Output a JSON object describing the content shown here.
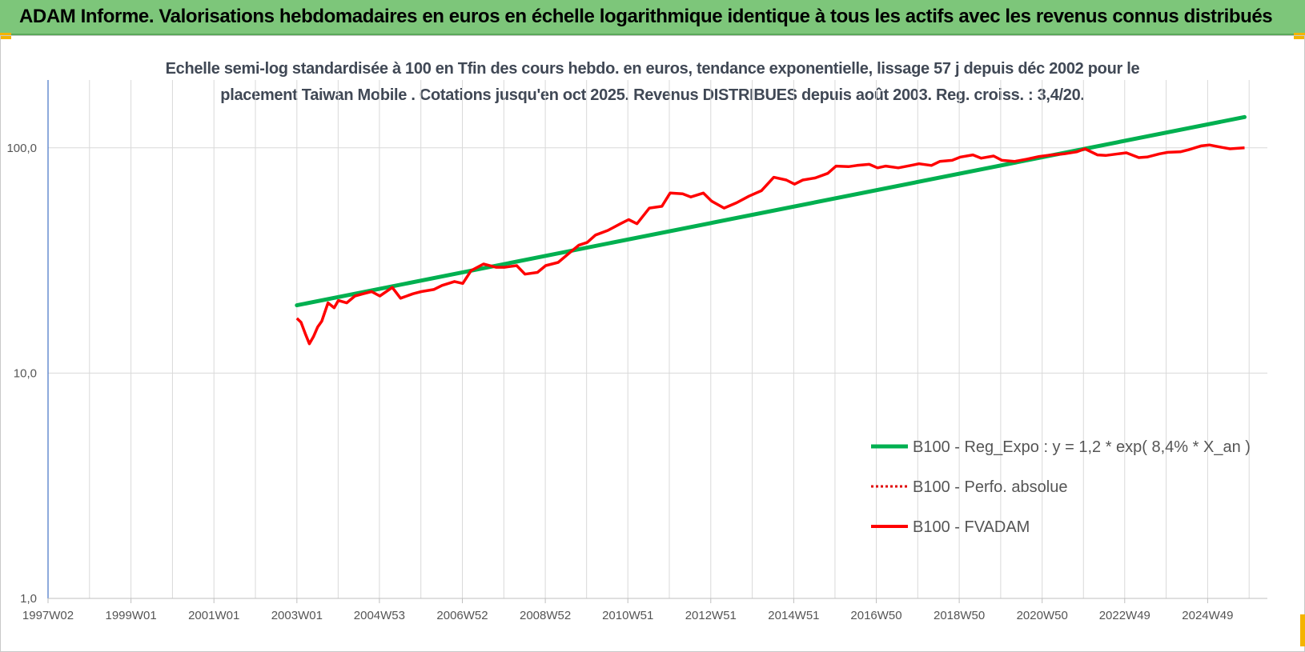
{
  "header": {
    "title": "ADAM Informe. Valorisations hebdomadaires en euros en échelle logarithmique identique à tous les actifs avec les revenus connus distribués"
  },
  "colors": {
    "header_bg": "#7dc67a",
    "regression": "#00b050",
    "perf": "#e00000",
    "fvadam": "#ff0000",
    "grid": "#d9d9d9"
  },
  "chart_data": {
    "type": "line",
    "title": "Echelle semi-log standardisée à 100 en Tfin des cours hebdo. en euros, tendance exponentielle, lissage 57 j depuis déc 2002 pour le placement Taiwan Mobile . Cotations jusqu'en oct 2025. Revenus DISTRIBUES depuis août 2003. Reg. croiss. : 3,4/20.",
    "subtitle_lines": [
      "Echelle semi-log standardisée à 100 en Tfin des cours hebdo. en euros, tendance exponentielle, lissage 57 j depuis déc 2002 pour le",
      "placement Taiwan Mobile . Cotations jusqu'en oct 2025. Revenus DISTRIBUES depuis août 2003. Reg. croiss. : 3,4/20."
    ],
    "y_scale": "log",
    "ylim": [
      1,
      200
    ],
    "xlim": [
      1997.0,
      2026.4
    ],
    "grid": true,
    "legend_position": "bottom-right",
    "x_ticks": [
      {
        "label": "1997W02",
        "x": 1997.0
      },
      {
        "label": "1999W01",
        "x": 1999.0
      },
      {
        "label": "2001W01",
        "x": 2001.0
      },
      {
        "label": "2003W01",
        "x": 2003.0
      },
      {
        "label": "2004W53",
        "x": 2004.99
      },
      {
        "label": "2006W52",
        "x": 2006.99
      },
      {
        "label": "2008W52",
        "x": 2008.99
      },
      {
        "label": "2010W51",
        "x": 2010.98
      },
      {
        "label": "2012W51",
        "x": 2012.98
      },
      {
        "label": "2014W51",
        "x": 2014.98
      },
      {
        "label": "2016W50",
        "x": 2016.97
      },
      {
        "label": "2018W50",
        "x": 2018.97
      },
      {
        "label": "2020W50",
        "x": 2020.97
      },
      {
        "label": "2022W49",
        "x": 2022.96
      },
      {
        "label": "2024W49",
        "x": 2024.96
      }
    ],
    "y_ticks": [
      {
        "label": "1,0",
        "value": 1
      },
      {
        "label": "10,0",
        "value": 10
      },
      {
        "label": "100,0",
        "value": 100
      }
    ],
    "series": [
      {
        "name": "B100 - Reg_Expo : y = 1,2 * exp( 8,4% *  X_an )",
        "style": "solid-thick",
        "color": "#00b050",
        "x": [
          2003.0,
          2025.85
        ],
        "y": [
          20.0,
          137.0
        ]
      },
      {
        "name": "B100 - Perfo. absolue",
        "style": "dotted",
        "color": "#e00000",
        "x": [],
        "y": []
      },
      {
        "name": "B100 - FVADAM",
        "style": "solid",
        "color": "#ff0000",
        "x": [
          2003.0,
          2003.1,
          2003.2,
          2003.3,
          2003.4,
          2003.5,
          2003.6,
          2003.75,
          2003.9,
          2004.0,
          2004.2,
          2004.4,
          2004.6,
          2004.8,
          2005.0,
          2005.3,
          2005.5,
          2005.8,
          2006.0,
          2006.3,
          2006.5,
          2006.8,
          2007.0,
          2007.2,
          2007.5,
          2007.8,
          2008.0,
          2008.3,
          2008.5,
          2008.8,
          2009.0,
          2009.3,
          2009.6,
          2009.8,
          2010.0,
          2010.2,
          2010.5,
          2010.8,
          2011.0,
          2011.2,
          2011.5,
          2011.8,
          2012.0,
          2012.3,
          2012.5,
          2012.8,
          2013.0,
          2013.3,
          2013.6,
          2013.9,
          2014.2,
          2014.5,
          2014.8,
          2015.0,
          2015.2,
          2015.5,
          2015.8,
          2016.0,
          2016.3,
          2016.5,
          2016.8,
          2017.0,
          2017.2,
          2017.5,
          2017.8,
          2018.0,
          2018.3,
          2018.5,
          2018.8,
          2019.0,
          2019.3,
          2019.5,
          2019.8,
          2020.0,
          2020.3,
          2020.6,
          2020.9,
          2021.2,
          2021.5,
          2021.8,
          2022.0,
          2022.3,
          2022.5,
          2022.8,
          2023.0,
          2023.3,
          2023.5,
          2023.8,
          2024.0,
          2024.3,
          2024.5,
          2024.8,
          2025.0,
          2025.3,
          2025.5,
          2025.85
        ],
        "y": [
          17.5,
          16.8,
          15.0,
          13.5,
          14.5,
          16.0,
          17.0,
          20.5,
          19.5,
          21.0,
          20.5,
          22.0,
          22.5,
          23.0,
          22.0,
          24.0,
          21.5,
          22.5,
          23.0,
          23.5,
          24.5,
          25.5,
          25.0,
          28.5,
          30.5,
          29.5,
          29.5,
          30.0,
          27.5,
          28.0,
          30.0,
          31.0,
          34.5,
          37.0,
          38.0,
          41.0,
          43.0,
          46.0,
          48.0,
          46.0,
          54.0,
          55.0,
          63.0,
          62.5,
          60.5,
          63.0,
          58.0,
          54.0,
          57.0,
          61.0,
          64.5,
          74.0,
          72.0,
          69.0,
          72.0,
          73.5,
          77.0,
          83.0,
          82.5,
          83.5,
          84.5,
          81.5,
          83.0,
          81.5,
          83.5,
          85.0,
          83.5,
          87.0,
          88.0,
          91.0,
          93.0,
          90.0,
          92.0,
          88.0,
          87.0,
          89.0,
          91.5,
          93.0,
          94.0,
          96.0,
          99.0,
          93.0,
          92.5,
          94.0,
          95.0,
          90.5,
          91.0,
          94.0,
          95.5,
          96.0,
          98.0,
          102.0,
          103.0,
          100.5,
          99.0,
          100.0
        ]
      }
    ]
  }
}
